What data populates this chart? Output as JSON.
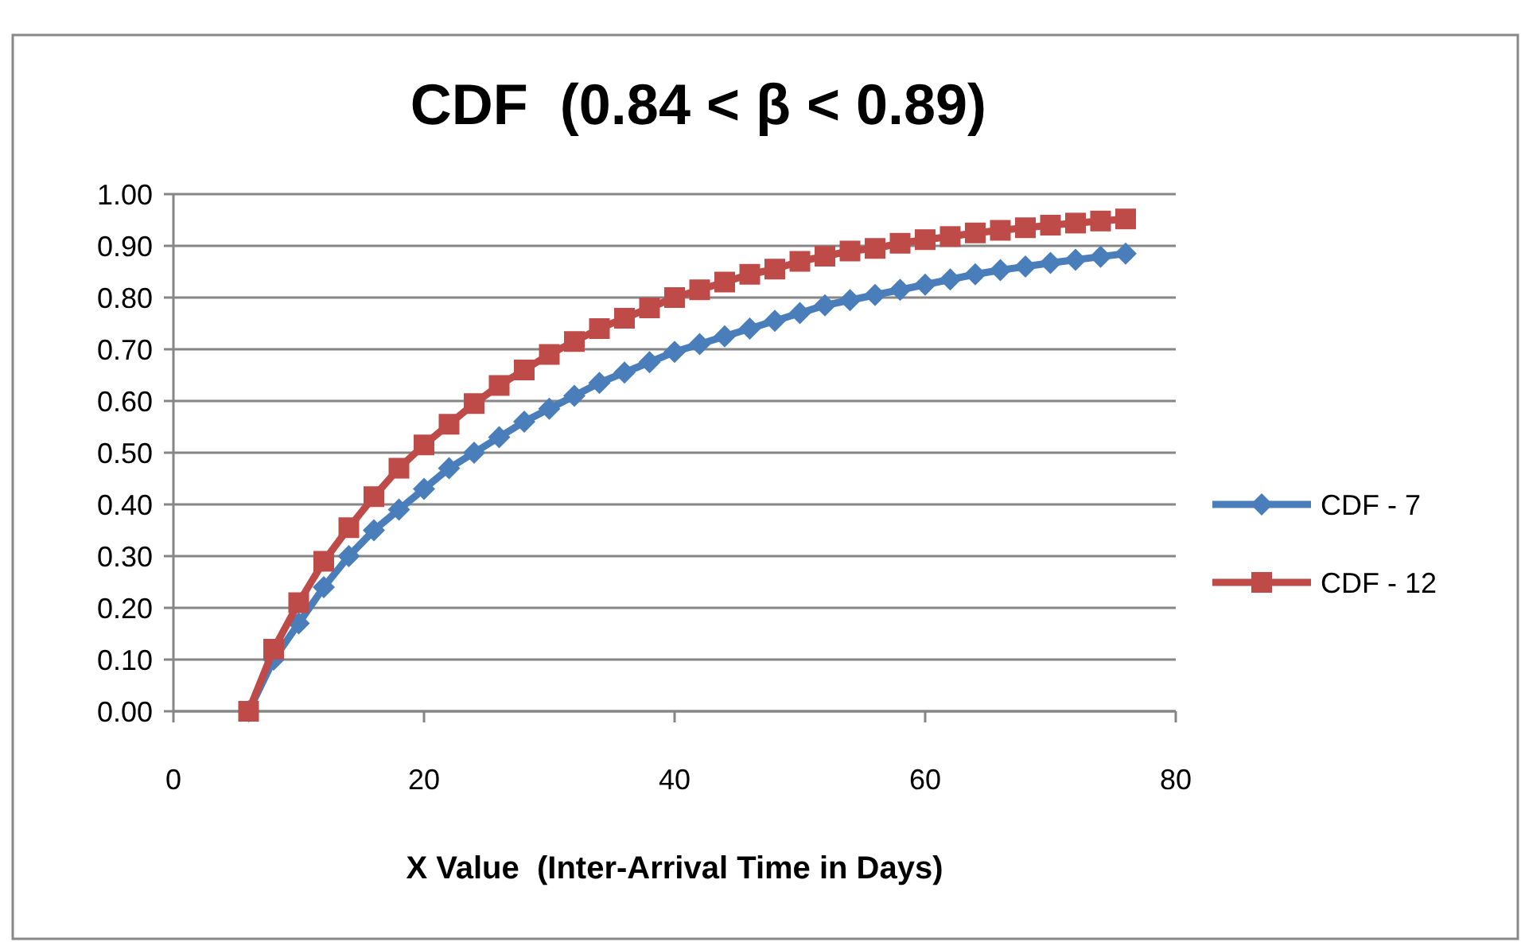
{
  "chart_data": {
    "type": "line",
    "title": "CDF  (0.84 < β < 0.89)",
    "xlabel": "X Value  (Inter-Arrival Time in Days)",
    "x": [
      6,
      8,
      10,
      12,
      14,
      16,
      18,
      20,
      22,
      24,
      26,
      28,
      30,
      32,
      34,
      36,
      38,
      40,
      42,
      44,
      46,
      48,
      50,
      52,
      54,
      56,
      58,
      60,
      62,
      64,
      66,
      68,
      70,
      72,
      74,
      76
    ],
    "series": [
      {
        "name": "CDF - 7",
        "color": "#4a7ebb",
        "marker": "diamond",
        "values": [
          0,
          0.1,
          0.17,
          0.24,
          0.3,
          0.35,
          0.39,
          0.43,
          0.47,
          0.5,
          0.53,
          0.56,
          0.585,
          0.61,
          0.635,
          0.655,
          0.675,
          0.695,
          0.71,
          0.725,
          0.74,
          0.755,
          0.77,
          0.785,
          0.795,
          0.805,
          0.815,
          0.825,
          0.835,
          0.845,
          0.853,
          0.86,
          0.867,
          0.873,
          0.879,
          0.885
        ]
      },
      {
        "name": "CDF - 12",
        "color": "#be4b48",
        "marker": "square",
        "values": [
          0,
          0.12,
          0.21,
          0.29,
          0.355,
          0.415,
          0.47,
          0.515,
          0.555,
          0.595,
          0.63,
          0.66,
          0.69,
          0.715,
          0.74,
          0.76,
          0.78,
          0.8,
          0.815,
          0.83,
          0.845,
          0.855,
          0.87,
          0.88,
          0.89,
          0.895,
          0.905,
          0.912,
          0.918,
          0.925,
          0.93,
          0.935,
          0.94,
          0.944,
          0.948,
          0.952
        ]
      }
    ],
    "xlim": [
      0,
      80
    ],
    "xticks": [
      0,
      20,
      40,
      60,
      80
    ],
    "ylim": [
      0,
      1
    ],
    "yticks": [
      {
        "value": 0,
        "label": "0.00"
      },
      {
        "value": 0.1,
        "label": "0.10"
      },
      {
        "value": 0.2,
        "label": "0.20"
      },
      {
        "value": 0.3,
        "label": "0.30"
      },
      {
        "value": 0.4,
        "label": "0.40"
      },
      {
        "value": 0.5,
        "label": "0.50"
      },
      {
        "value": 0.6,
        "label": "0.60"
      },
      {
        "value": 0.7,
        "label": "0.70"
      },
      {
        "value": 0.8,
        "label": "0.80"
      },
      {
        "value": 0.9,
        "label": "0.90"
      },
      {
        "value": 1,
        "label": "1.00"
      }
    ],
    "grid": "y",
    "legend": "right",
    "line_style": "solid"
  }
}
